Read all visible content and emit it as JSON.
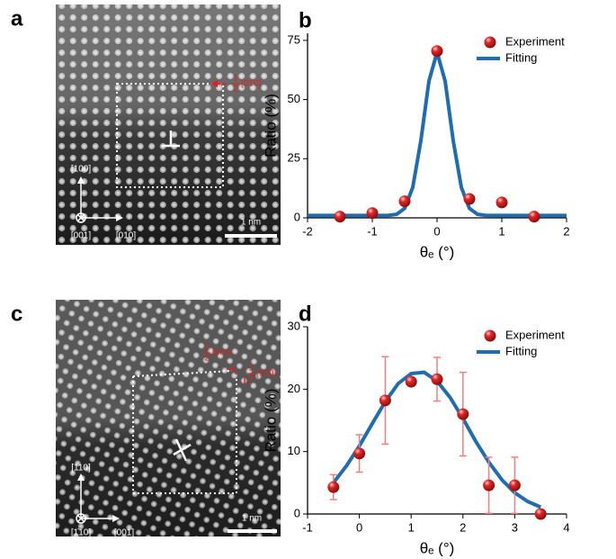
{
  "images": [
    {
      "panel_label": "a",
      "scale_bar": "1 nm",
      "directions": [
        "[100]",
        "[001]",
        "[010]"
      ],
      "burgers": [
        "1",
        "2",
        "[01̄0]"
      ]
    },
    {
      "panel_label": "c",
      "scale_bar": "1 nm",
      "directions": [
        "[110]",
        "[1̄10]",
        "[001]"
      ],
      "burgers": [
        "1",
        "2",
        "[001]",
        "1",
        "2",
        "[1̄10]"
      ]
    }
  ],
  "chart_data": [
    {
      "type": "scatter",
      "panel_label": "b",
      "xlabel": "θₑ (°)",
      "ylabel": "Ratio (%)",
      "xlim": [
        -2,
        2
      ],
      "xticks": [
        -2,
        -1,
        0,
        1,
        2
      ],
      "ylim": [
        0,
        78
      ],
      "yticks": [
        0,
        25,
        50,
        75
      ],
      "legend": "top-right",
      "series": [
        {
          "name": "Experiment",
          "style": "markers",
          "color": "#d91e1e",
          "x": [
            -1.5,
            -1,
            -0.5,
            0,
            0.5,
            1,
            1.5
          ],
          "values": [
            0.5,
            2,
            7,
            70.5,
            8,
            6.5,
            0.5
          ]
        },
        {
          "name": "Fitting",
          "style": "line",
          "color": "#1f6db0",
          "x": [
            -2,
            -1.5,
            -1,
            -0.75,
            -0.625,
            -0.5,
            -0.375,
            -0.25,
            -0.125,
            0,
            0.125,
            0.25,
            0.375,
            0.5,
            0.625,
            0.75,
            1,
            1.5,
            2
          ],
          "values": [
            1,
            1,
            1,
            1.06,
            1.5,
            4,
            12.9,
            32.6,
            57.8,
            70,
            57.8,
            32.6,
            12.9,
            4,
            1.5,
            1.06,
            1,
            1,
            1
          ]
        }
      ]
    },
    {
      "type": "scatter",
      "panel_label": "d",
      "xlabel": "θₑ (°)",
      "ylabel": "Ratio (%)",
      "xlim": [
        -1,
        4
      ],
      "xticks": [
        -1,
        0,
        1,
        2,
        3,
        4
      ],
      "ylim": [
        0,
        30
      ],
      "yticks": [
        0,
        10,
        20,
        30
      ],
      "legend": "top-right",
      "series": [
        {
          "name": "Experiment",
          "style": "markers",
          "color": "#d91e1e",
          "errors_color": "#f08080",
          "x": [
            -0.5,
            0,
            0.5,
            1,
            1.5,
            2,
            2.5,
            3,
            3.5
          ],
          "values": [
            4.3,
            9.7,
            18.2,
            21.2,
            21.6,
            16,
            4.6,
            4.6,
            0
          ],
          "errors": [
            2,
            3,
            7,
            null,
            3.5,
            6.7,
            4.5,
            4.5,
            null
          ]
        },
        {
          "name": "Fitting",
          "style": "line",
          "color": "#1f6db0",
          "x": [
            -0.5,
            -0.25,
            0,
            0.25,
            0.5,
            0.75,
            1,
            1.25,
            1.5,
            1.75,
            2,
            2.25,
            2.5,
            2.75,
            3,
            3.25,
            3.5
          ],
          "values": [
            5,
            7.7,
            10.9,
            14.5,
            18,
            20.9,
            22.5,
            22.7,
            21.3,
            18.7,
            15.3,
            11.6,
            8.3,
            5.5,
            3.4,
            2,
            1.1
          ]
        }
      ]
    }
  ]
}
